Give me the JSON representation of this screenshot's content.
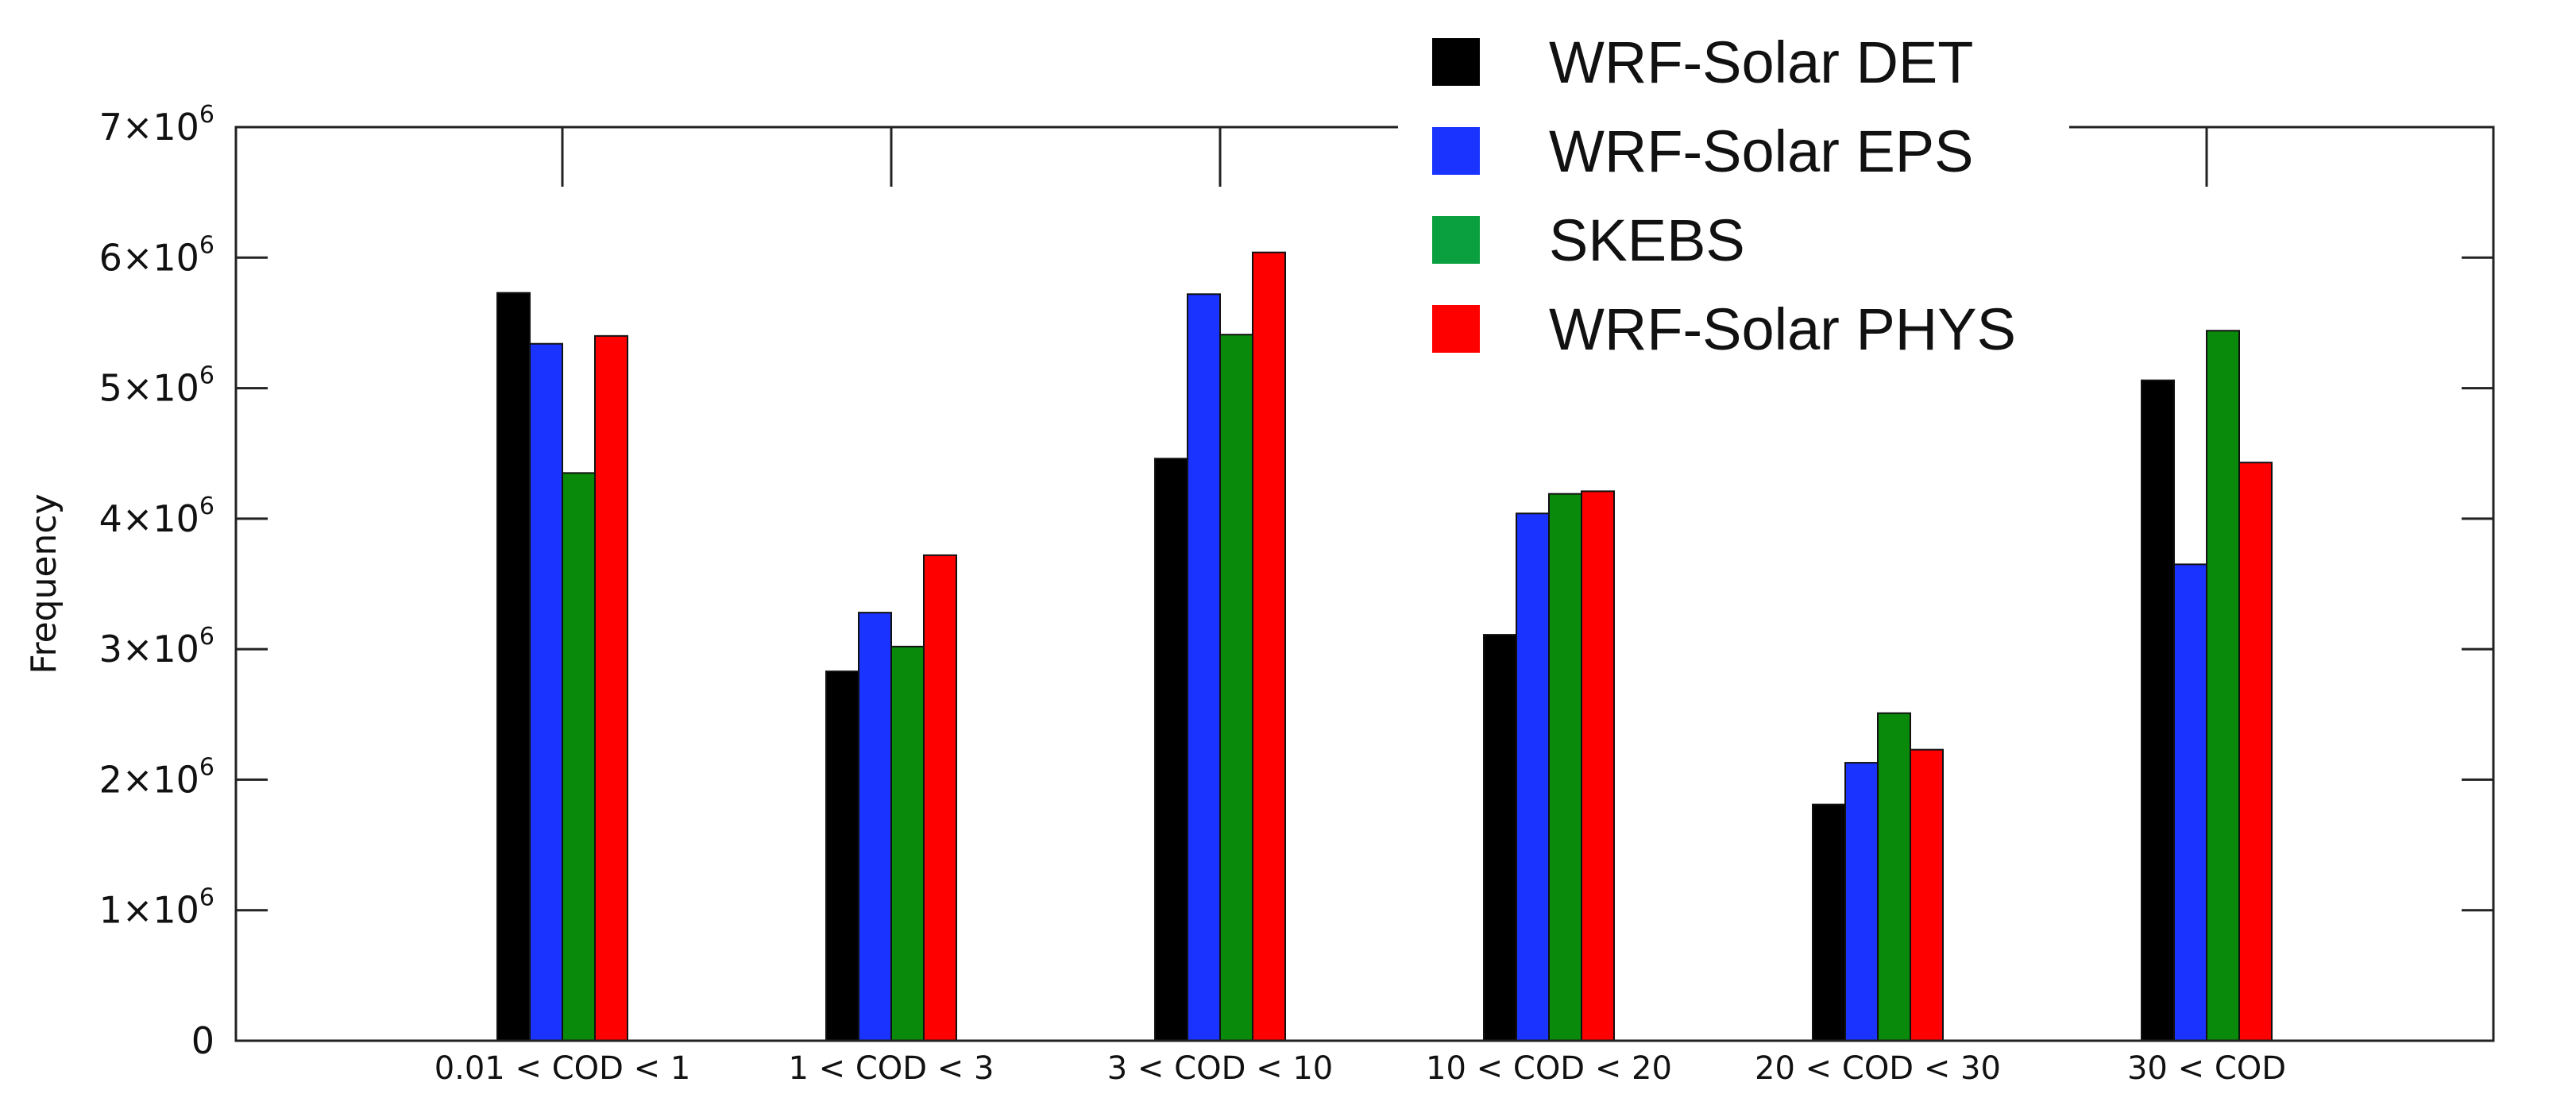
{
  "chart_data": {
    "type": "bar",
    "title": "",
    "xlabel": "",
    "ylabel": "Frequency",
    "ylim": [
      0,
      7000000
    ],
    "grid": false,
    "legend_position": "top-right",
    "categories": [
      "0.01 < COD < 1",
      "1 < COD < 3",
      "3 < COD < 10",
      "10 < COD < 20",
      "20 < COD < 30",
      "30 < COD"
    ],
    "y_ticks": [
      {
        "value": 0,
        "base": "0",
        "exp": ""
      },
      {
        "value": 1000000,
        "base": "1×10",
        "exp": "6"
      },
      {
        "value": 2000000,
        "base": "2×10",
        "exp": "6"
      },
      {
        "value": 3000000,
        "base": "3×10",
        "exp": "6"
      },
      {
        "value": 4000000,
        "base": "4×10",
        "exp": "6"
      },
      {
        "value": 5000000,
        "base": "5×10",
        "exp": "6"
      },
      {
        "value": 6000000,
        "base": "6×10",
        "exp": "6"
      },
      {
        "value": 7000000,
        "base": "7×10",
        "exp": "6"
      }
    ],
    "series": [
      {
        "name": "WRF-Solar DET",
        "color": "#000000",
        "values": [
          5730000,
          2830000,
          4460000,
          3110000,
          1810000,
          5060000
        ]
      },
      {
        "name": "WRF-Solar EPS",
        "color": "#1a33ff",
        "values": [
          5340000,
          3280000,
          5720000,
          4040000,
          2130000,
          3650000
        ]
      },
      {
        "name": "SKEBS",
        "color": "#0a8a0a",
        "values": [
          4350000,
          3020000,
          5410000,
          4190000,
          2510000,
          5440000
        ]
      },
      {
        "name": "WRF-Solar PHYS",
        "color": "#ff0000",
        "values": [
          5400000,
          3720000,
          6040000,
          4210000,
          2230000,
          4430000
        ]
      }
    ],
    "legend_swatch_colors": [
      "#000000",
      "#1a33ff",
      "#0aa040",
      "#ff0000"
    ]
  }
}
